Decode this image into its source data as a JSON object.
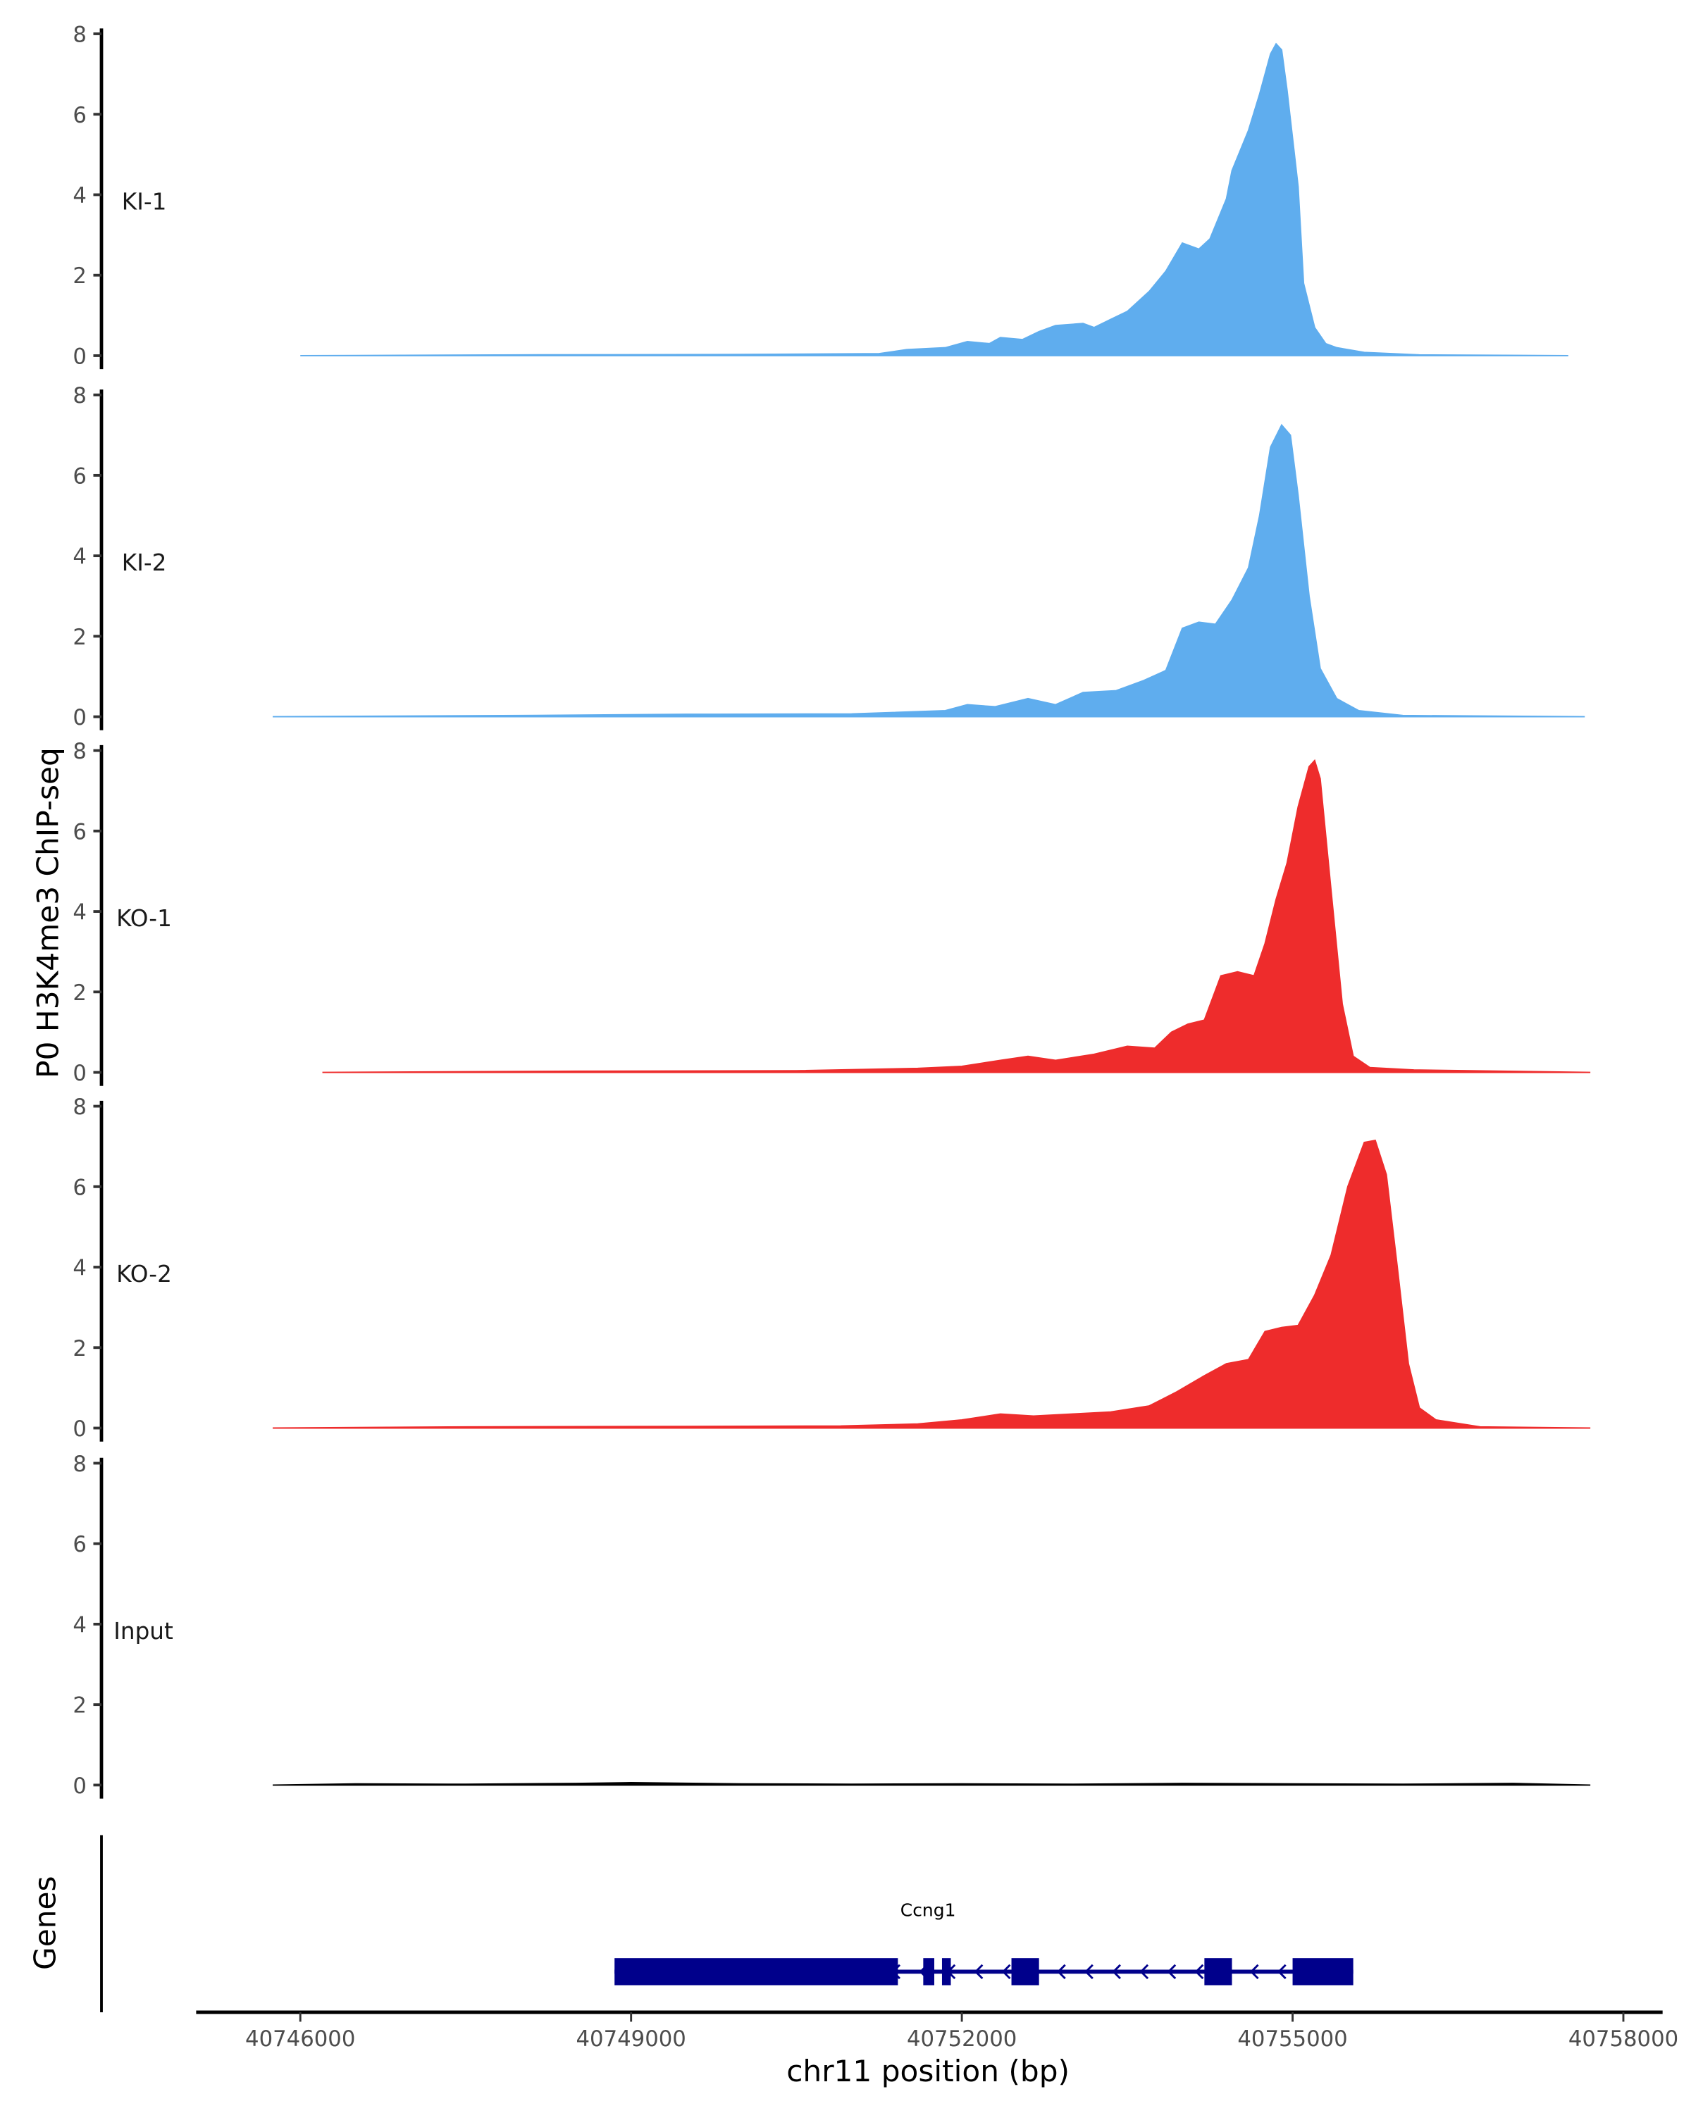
{
  "chart_data": {
    "type": "area",
    "ylabel": "P0 H3K4me3 ChIP-seq",
    "xlabel": "chr11 position (bp)",
    "xlim": [
      40745300,
      40758400
    ],
    "ylim": [
      0,
      8
    ],
    "yticks": [
      0,
      2,
      4,
      6,
      8
    ],
    "xticks": [
      40746000,
      40749000,
      40752000,
      40755000,
      40758000
    ],
    "xtick_labels": [
      "40746000",
      "40749000",
      "40752000",
      "40755000",
      "40758000"
    ],
    "colors": {
      "KI": "#5fadee",
      "KO": "#ee2c2c",
      "Input": "#000000",
      "gene": "#00008b"
    },
    "tracks": [
      {
        "name": "KI-1",
        "color": "#5fadee",
        "points": [
          [
            40746000,
            0
          ],
          [
            40748000,
            0.02
          ],
          [
            40750000,
            0.03
          ],
          [
            40751250,
            0.05
          ],
          [
            40751500,
            0.15
          ],
          [
            40751850,
            0.2
          ],
          [
            40752050,
            0.35
          ],
          [
            40752250,
            0.3
          ],
          [
            40752350,
            0.45
          ],
          [
            40752550,
            0.4
          ],
          [
            40752700,
            0.6
          ],
          [
            40752850,
            0.75
          ],
          [
            40753100,
            0.8
          ],
          [
            40753200,
            0.7
          ],
          [
            40753350,
            0.9
          ],
          [
            40753500,
            1.1
          ],
          [
            40753700,
            1.6
          ],
          [
            40753850,
            2.1
          ],
          [
            40754000,
            2.8
          ],
          [
            40754150,
            2.65
          ],
          [
            40754250,
            2.9
          ],
          [
            40754400,
            3.9
          ],
          [
            40754450,
            4.6
          ],
          [
            40754600,
            5.6
          ],
          [
            40754700,
            6.5
          ],
          [
            40754800,
            7.5
          ],
          [
            40754850,
            7.75
          ],
          [
            40754900,
            7.6
          ],
          [
            40754950,
            6.6
          ],
          [
            40755050,
            4.2
          ],
          [
            40755100,
            1.8
          ],
          [
            40755200,
            0.7
          ],
          [
            40755300,
            0.3
          ],
          [
            40755400,
            0.2
          ],
          [
            40755650,
            0.08
          ],
          [
            40756150,
            0.02
          ],
          [
            40757500,
            0
          ]
        ]
      },
      {
        "name": "KI-2",
        "color": "#5fadee",
        "points": [
          [
            40745750,
            0
          ],
          [
            40748000,
            0.03
          ],
          [
            40749500,
            0.06
          ],
          [
            40751000,
            0.07
          ],
          [
            40751850,
            0.15
          ],
          [
            40752050,
            0.3
          ],
          [
            40752300,
            0.25
          ],
          [
            40752600,
            0.45
          ],
          [
            40752850,
            0.3
          ],
          [
            40753100,
            0.6
          ],
          [
            40753400,
            0.65
          ],
          [
            40753650,
            0.9
          ],
          [
            40753850,
            1.15
          ],
          [
            40754000,
            2.2
          ],
          [
            40754150,
            2.35
          ],
          [
            40754300,
            2.3
          ],
          [
            40754450,
            2.9
          ],
          [
            40754600,
            3.7
          ],
          [
            40754700,
            5.0
          ],
          [
            40754800,
            6.7
          ],
          [
            40754900,
            7.25
          ],
          [
            40754980,
            7.0
          ],
          [
            40755050,
            5.5
          ],
          [
            40755150,
            3.0
          ],
          [
            40755250,
            1.2
          ],
          [
            40755400,
            0.45
          ],
          [
            40755600,
            0.15
          ],
          [
            40756000,
            0.03
          ],
          [
            40757650,
            0
          ]
        ]
      },
      {
        "name": "KO-1",
        "color": "#ee2c2c",
        "points": [
          [
            40746200,
            0
          ],
          [
            40748500,
            0.03
          ],
          [
            40750500,
            0.04
          ],
          [
            40751600,
            0.1
          ],
          [
            40752000,
            0.15
          ],
          [
            40752350,
            0.3
          ],
          [
            40752600,
            0.4
          ],
          [
            40752850,
            0.3
          ],
          [
            40753200,
            0.45
          ],
          [
            40753500,
            0.65
          ],
          [
            40753750,
            0.6
          ],
          [
            40753900,
            1.0
          ],
          [
            40754050,
            1.2
          ],
          [
            40754200,
            1.3
          ],
          [
            40754350,
            2.4
          ],
          [
            40754500,
            2.5
          ],
          [
            40754650,
            2.4
          ],
          [
            40754750,
            3.2
          ],
          [
            40754850,
            4.3
          ],
          [
            40754950,
            5.2
          ],
          [
            40755050,
            6.6
          ],
          [
            40755150,
            7.6
          ],
          [
            40755200,
            7.75
          ],
          [
            40755250,
            7.3
          ],
          [
            40755350,
            4.5
          ],
          [
            40755450,
            1.7
          ],
          [
            40755550,
            0.4
          ],
          [
            40755700,
            0.12
          ],
          [
            40756100,
            0.06
          ],
          [
            40757700,
            0
          ]
        ]
      },
      {
        "name": "KO-2",
        "color": "#ee2c2c",
        "points": [
          [
            40745750,
            0
          ],
          [
            40747500,
            0.03
          ],
          [
            40749500,
            0.04
          ],
          [
            40750900,
            0.05
          ],
          [
            40751600,
            0.1
          ],
          [
            40752000,
            0.2
          ],
          [
            40752350,
            0.35
          ],
          [
            40752650,
            0.3
          ],
          [
            40753000,
            0.35
          ],
          [
            40753350,
            0.4
          ],
          [
            40753700,
            0.55
          ],
          [
            40753950,
            0.9
          ],
          [
            40754200,
            1.3
          ],
          [
            40754400,
            1.6
          ],
          [
            40754600,
            1.7
          ],
          [
            40754750,
            2.4
          ],
          [
            40754900,
            2.5
          ],
          [
            40755050,
            2.55
          ],
          [
            40755200,
            3.3
          ],
          [
            40755350,
            4.3
          ],
          [
            40755500,
            6.0
          ],
          [
            40755650,
            7.1
          ],
          [
            40755750,
            7.15
          ],
          [
            40755850,
            6.3
          ],
          [
            40755950,
            4.0
          ],
          [
            40756050,
            1.6
          ],
          [
            40756150,
            0.5
          ],
          [
            40756300,
            0.2
          ],
          [
            40756700,
            0.03
          ],
          [
            40757700,
            0
          ]
        ]
      },
      {
        "name": "Input",
        "color": "#000000",
        "points": [
          [
            40745750,
            0
          ],
          [
            40746500,
            0.03
          ],
          [
            40747500,
            0.02
          ],
          [
            40748500,
            0.04
          ],
          [
            40749000,
            0.06
          ],
          [
            40750000,
            0.03
          ],
          [
            40751000,
            0.02
          ],
          [
            40752000,
            0.03
          ],
          [
            40753000,
            0.02
          ],
          [
            40754000,
            0.04
          ],
          [
            40755000,
            0.03
          ],
          [
            40756000,
            0.02
          ],
          [
            40757000,
            0.04
          ],
          [
            40757700,
            0
          ]
        ]
      }
    ],
    "genes_label": "Genes",
    "gene": {
      "name": "Ccng1",
      "strand": "-",
      "start": 40748850,
      "end": 40755550,
      "exons": [
        [
          40748850,
          40751420
        ],
        [
          40751650,
          40751750
        ],
        [
          40751820,
          40751900
        ],
        [
          40752450,
          40752700
        ],
        [
          40754200,
          40754450
        ],
        [
          40755000,
          40755550
        ]
      ]
    }
  }
}
